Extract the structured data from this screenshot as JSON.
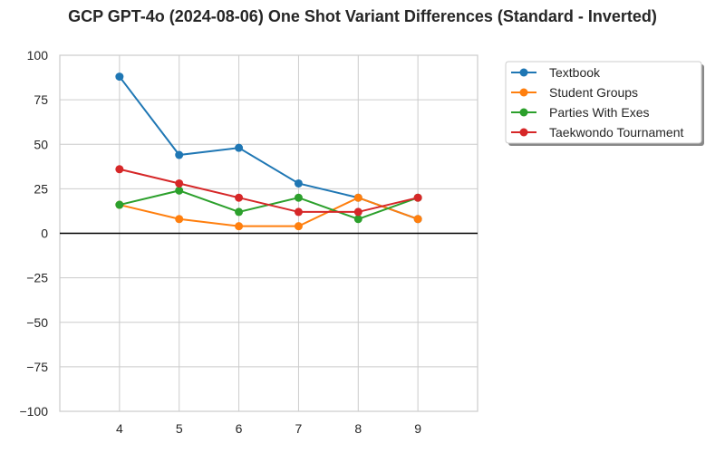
{
  "chart_data": {
    "type": "line",
    "title": "GCP GPT-4o (2024-08-06) One Shot Variant Differences (Standard - Inverted)",
    "xlabel": "",
    "ylabel": "",
    "x": [
      4,
      5,
      6,
      7,
      8,
      9
    ],
    "xlim": [
      3,
      10
    ],
    "ylim": [
      -100,
      100
    ],
    "x_ticks": [
      "4",
      "5",
      "6",
      "7",
      "8",
      "9"
    ],
    "y_ticks": [
      "100",
      "75",
      "50",
      "25",
      "0",
      "−25",
      "−50",
      "−75",
      "−100"
    ],
    "y_tick_values": [
      100,
      75,
      50,
      25,
      0,
      -25,
      -50,
      -75,
      -100
    ],
    "grid": true,
    "zero_line": true,
    "legend_position": "outside top-right",
    "series": [
      {
        "name": "Textbook",
        "color": "#1f77b4",
        "values": [
          88,
          44,
          48,
          28,
          20,
          8
        ]
      },
      {
        "name": "Student Groups",
        "color": "#ff7f0e",
        "values": [
          16,
          8,
          4,
          4,
          20,
          8
        ]
      },
      {
        "name": "Parties With Exes",
        "color": "#2ca02c",
        "values": [
          16,
          24,
          12,
          20,
          8,
          20
        ]
      },
      {
        "name": "Taekwondo Tournament",
        "color": "#d62728",
        "values": [
          36,
          28,
          20,
          12,
          12,
          20
        ]
      }
    ]
  }
}
